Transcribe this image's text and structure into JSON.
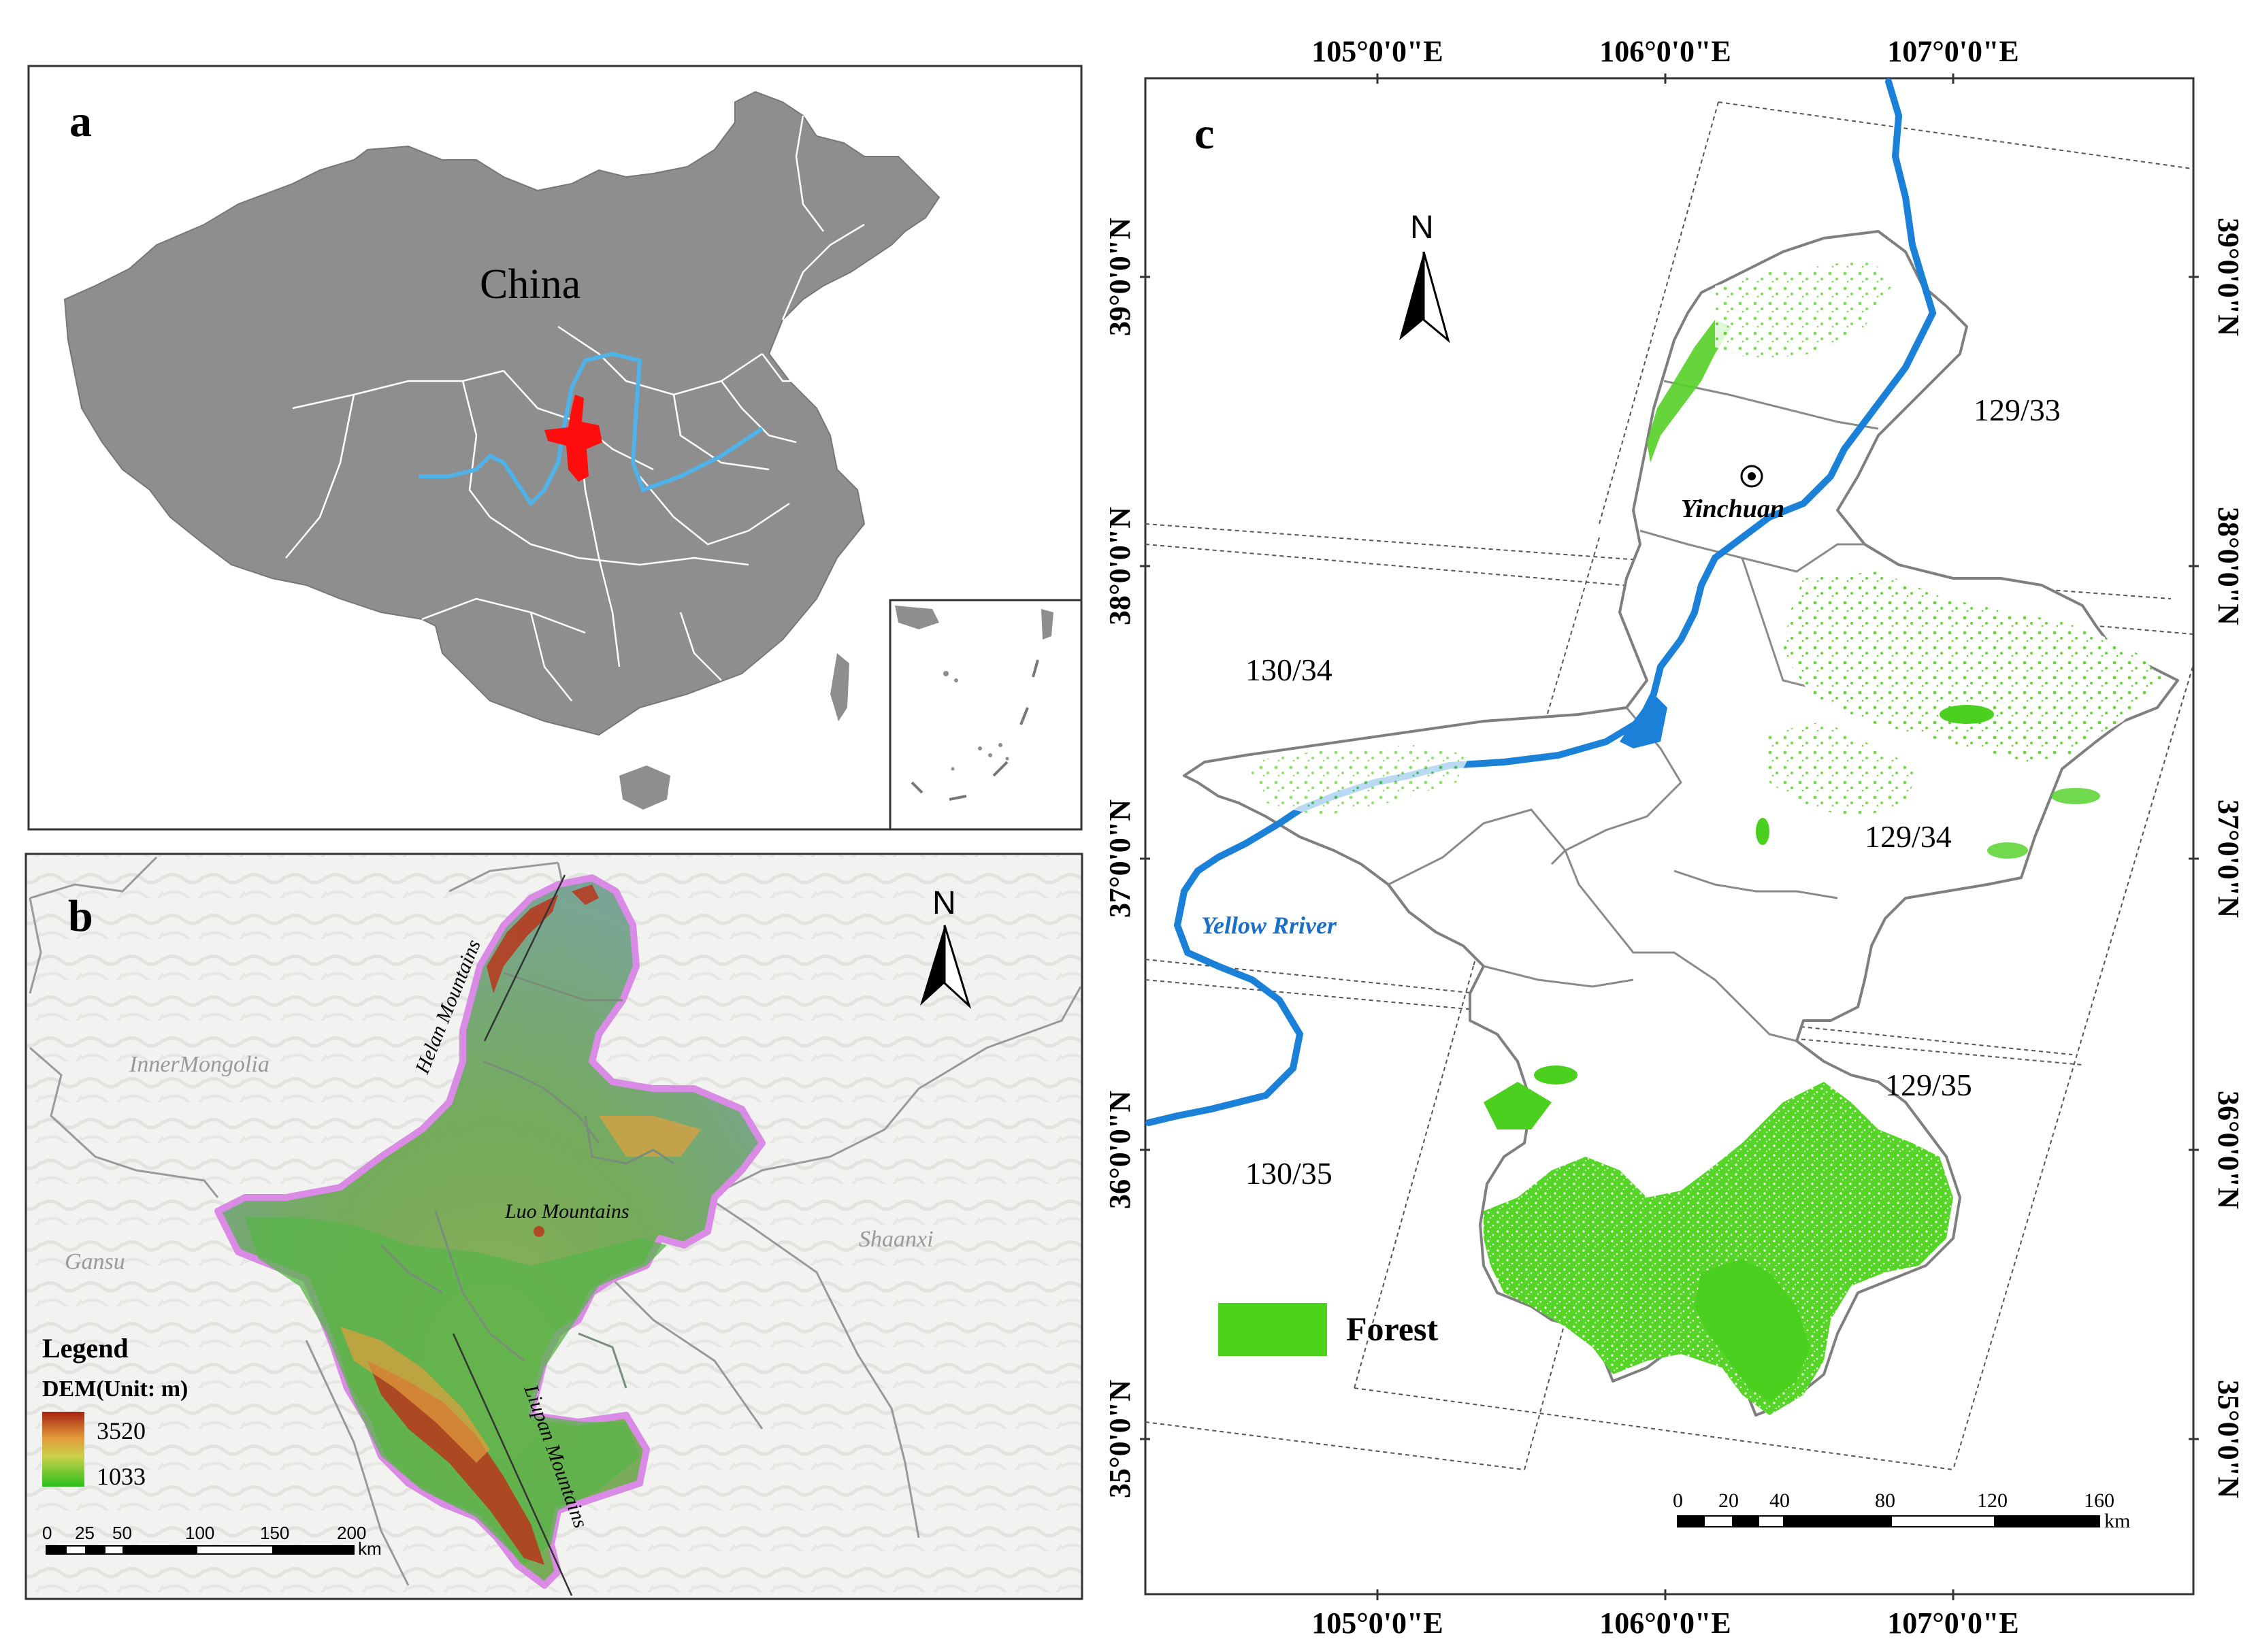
{
  "panel_a": {
    "label": "a",
    "country": "China",
    "colors": {
      "land": "#8f8f8f",
      "region": "#ff0000",
      "river": "#5ab4e6",
      "boundary": "#ffffff"
    }
  },
  "panel_b": {
    "label": "b",
    "north": "N",
    "places": {
      "inner_mongolia": "InnerMongolia",
      "gansu": "Gansu",
      "shaanxi": "Shaanxi"
    },
    "mountains": {
      "helan": "Helan Mountains",
      "luo": "Luo Mountains",
      "liupan": "Liupan Mountains"
    },
    "legend": {
      "title": "Legend",
      "subtitle": "DEM(Unit: m)",
      "max": "3520",
      "min": "1033"
    },
    "scale": {
      "ticks": [
        "0",
        "25",
        "50",
        "100",
        "150",
        "200"
      ],
      "unit": "km"
    },
    "colors": {
      "dem_high": "#b0301a",
      "dem_mid": "#e8a43a",
      "dem_low": "#3ac41e",
      "outline": "#d97bea"
    }
  },
  "panel_c": {
    "label": "c",
    "north": "N",
    "lon_labels": [
      "105°0'0\"E",
      "106°0'0\"E",
      "107°0'0\"E"
    ],
    "lat_labels": [
      "39°0'0\"N",
      "38°0'0\"N",
      "37°0'0\"N",
      "36°0'0\"N",
      "35°0'0\"N"
    ],
    "city": "Yinchuan",
    "river": "Yellow Rriver",
    "scenes": [
      "129/33",
      "130/34",
      "129/34",
      "129/35",
      "130/35"
    ],
    "legend_forest": "Forest",
    "scale": {
      "ticks": [
        "0",
        "20",
        "40",
        "80",
        "120",
        "160"
      ],
      "unit": "km"
    },
    "colors": {
      "forest": "#4cd41c",
      "river": "#1a7fd8",
      "outline": "#808080"
    }
  }
}
